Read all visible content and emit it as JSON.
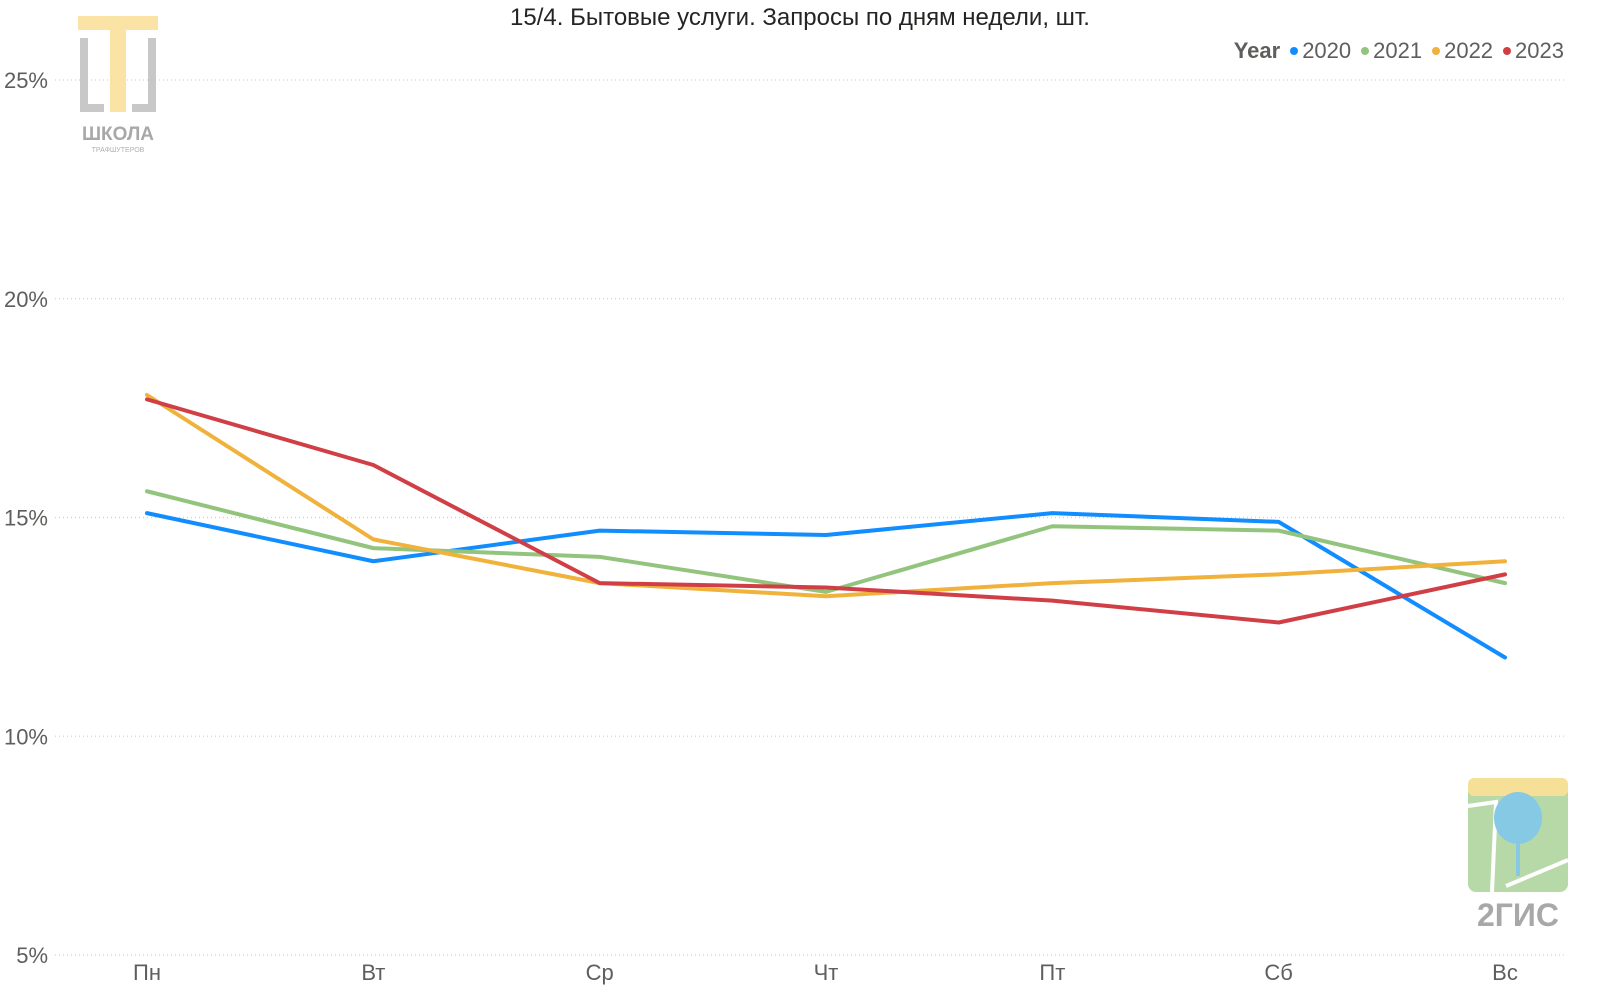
{
  "chart_data": {
    "type": "line",
    "title": "15/4. Бытовые услуги. Запросы по дням недели, шт.",
    "xlabel": "",
    "ylabel": "",
    "categories": [
      "Пн",
      "Вт",
      "Ср",
      "Чт",
      "Пт",
      "Сб",
      "Вс"
    ],
    "y_ticks": [
      "5%",
      "10%",
      "15%",
      "20%",
      "25%"
    ],
    "ylim": [
      5,
      25
    ],
    "grid": true,
    "legend_title": "Year",
    "legend_position": "top-right",
    "series": [
      {
        "name": "2020",
        "color": "#118dff",
        "values": [
          15.1,
          14.0,
          14.7,
          14.6,
          15.1,
          14.9,
          11.8
        ]
      },
      {
        "name": "2021",
        "color": "#93c47d",
        "values": [
          15.6,
          14.3,
          14.1,
          13.3,
          14.8,
          14.7,
          13.5
        ]
      },
      {
        "name": "2022",
        "color": "#f0b23a",
        "values": [
          17.8,
          14.5,
          13.5,
          13.2,
          13.5,
          13.7,
          14.0
        ]
      },
      {
        "name": "2023",
        "color": "#d13f46",
        "values": [
          17.7,
          16.2,
          13.5,
          13.4,
          13.1,
          12.6,
          13.7
        ]
      }
    ]
  },
  "logos": {
    "school": "ШКОЛА ТРАФШУТЕРОВ",
    "gis": "2ГИС"
  }
}
